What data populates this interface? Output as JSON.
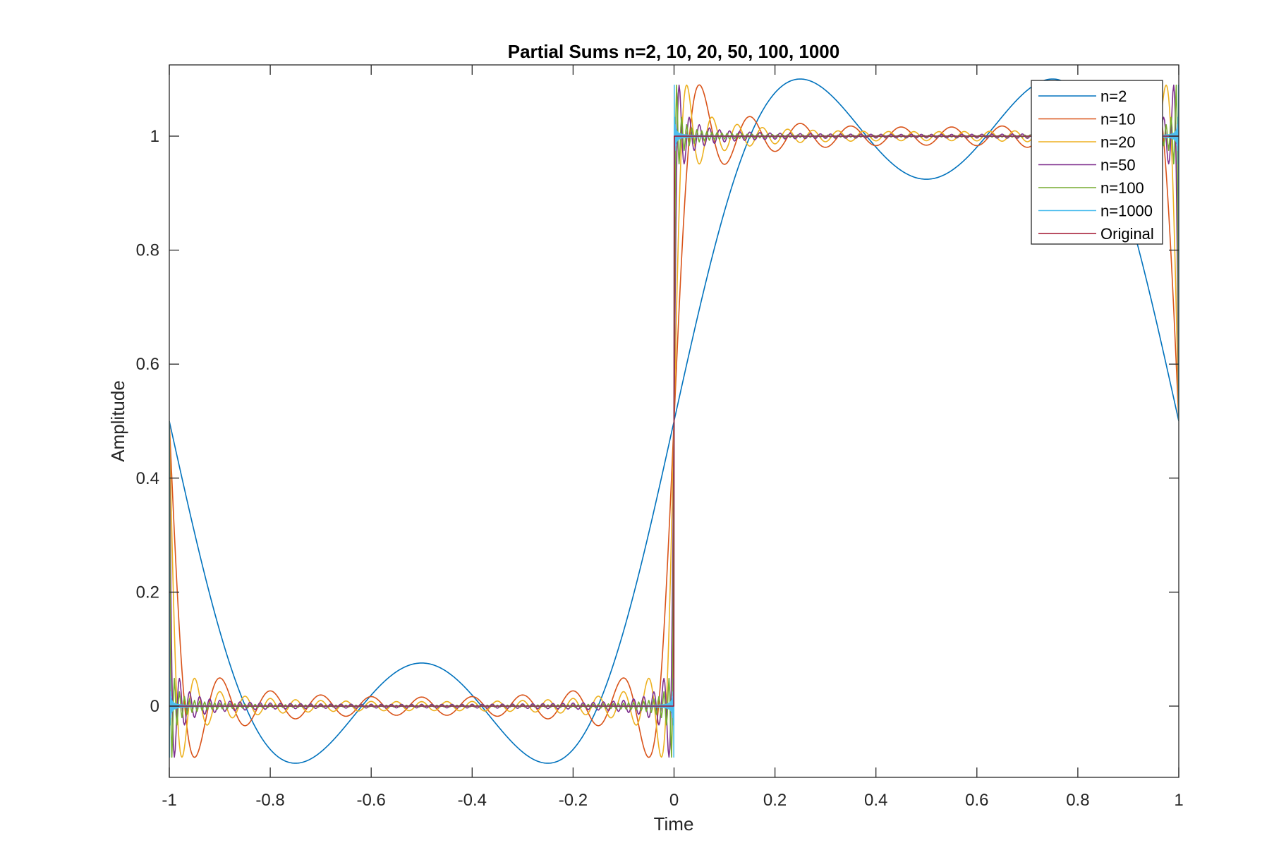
{
  "chart_data": {
    "type": "line",
    "title": "Partial Sums n=2, 10, 20, 50, 100, 1000",
    "xlabel": "Time",
    "ylabel": "Amplitude",
    "xlim": [
      -1,
      1
    ],
    "ylim": [
      -0.125,
      1.125
    ],
    "xticks": [
      -1,
      -0.8,
      -0.6,
      -0.4,
      -0.2,
      0,
      0.2,
      0.4,
      0.6,
      0.8,
      1
    ],
    "xtick_labels": [
      "-1",
      "-0.8",
      "-0.6",
      "-0.4",
      "-0.2",
      "0",
      "0.2",
      "0.4",
      "0.6",
      "0.8",
      "1"
    ],
    "yticks": [
      0,
      0.2,
      0.4,
      0.6,
      0.8,
      1
    ],
    "ytick_labels": [
      "0",
      "0.2",
      "0.4",
      "0.6",
      "0.8",
      "1"
    ],
    "grid": false,
    "legend_position": "top-right",
    "function": "partial Fourier sums of a square wave: 0 on (-1,0), 1 on (0,1), period 2",
    "series": [
      {
        "name": "n=2",
        "terms": 2,
        "color": "#0072BD"
      },
      {
        "name": "n=10",
        "terms": 10,
        "color": "#D95319"
      },
      {
        "name": "n=20",
        "terms": 20,
        "color": "#EDB120"
      },
      {
        "name": "n=50",
        "terms": 50,
        "color": "#7E2F8E"
      },
      {
        "name": "n=100",
        "terms": 100,
        "color": "#77AC30"
      },
      {
        "name": "n=1000",
        "terms": 1000,
        "color": "#4DBEEE"
      },
      {
        "name": "Original",
        "terms": 0,
        "color": "#A2142F"
      }
    ]
  }
}
